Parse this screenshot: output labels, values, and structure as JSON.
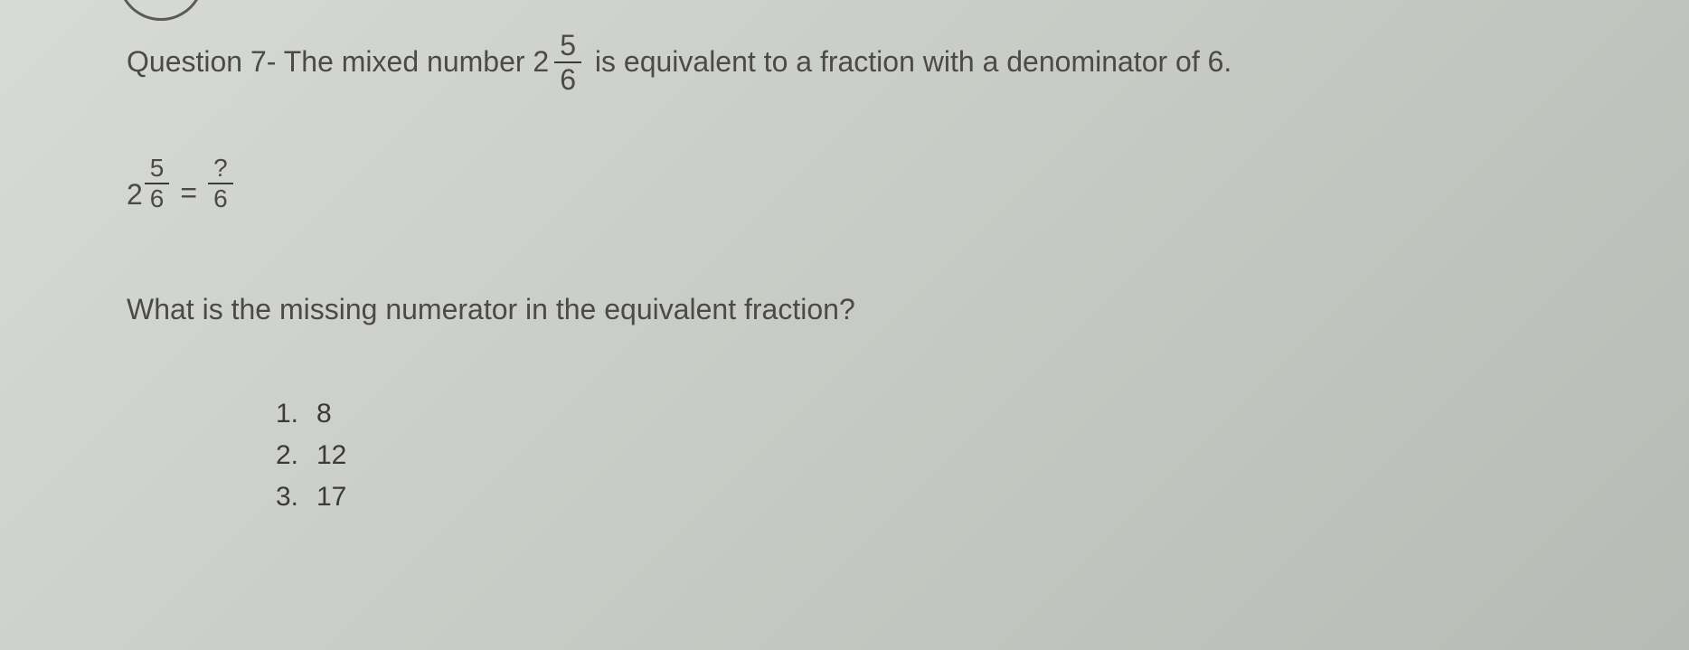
{
  "question": {
    "prefix": "Question 7- The mixed number 2",
    "fraction_numerator": "5",
    "fraction_denominator": "6",
    "suffix": "is equivalent to a fraction with a denominator of 6."
  },
  "equation": {
    "whole": "2",
    "left_numerator": "5",
    "left_denominator": "6",
    "equals": "=",
    "right_numerator": "?",
    "right_denominator": "6"
  },
  "prompt": "What is the missing numerator in the equivalent fraction?",
  "options": [
    {
      "num": "1.",
      "value": "8"
    },
    {
      "num": "2.",
      "value": "12"
    },
    {
      "num": "3.",
      "value": "17"
    }
  ],
  "colors": {
    "text": "#3a3a3a",
    "background_light": "#d8dad6",
    "background_dark": "#b8bab5"
  }
}
